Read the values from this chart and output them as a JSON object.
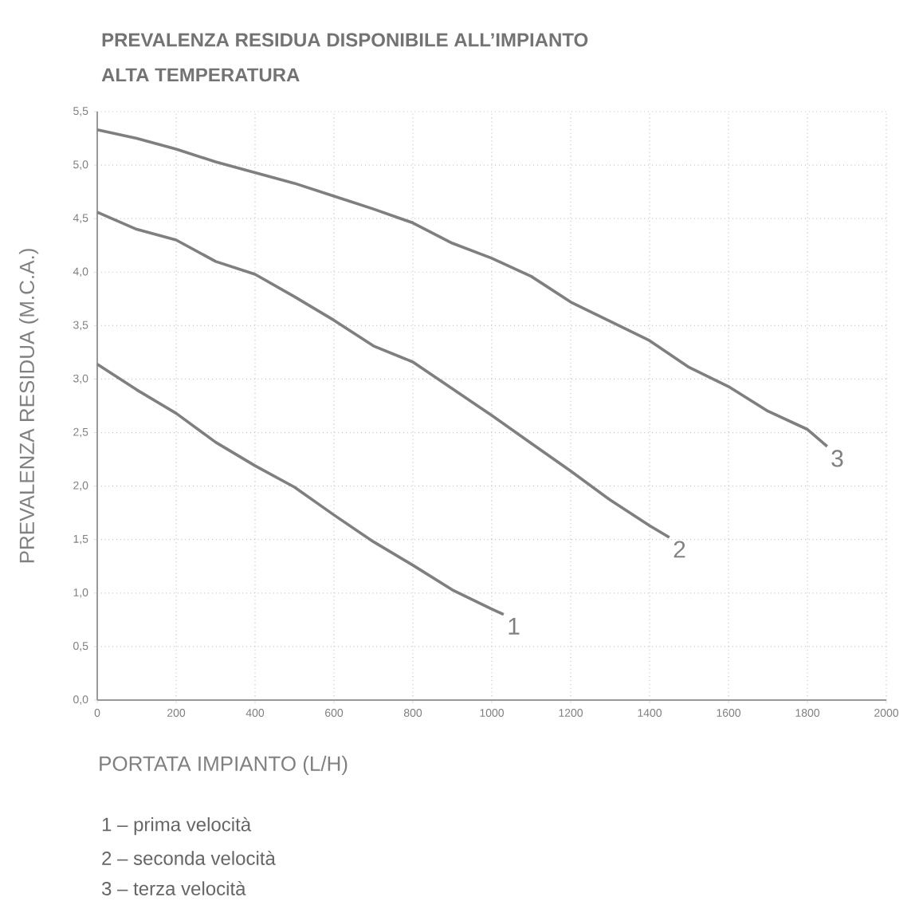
{
  "chart_data": {
    "type": "line",
    "title": "PREVALENZA RESIDUA DISPONIBILE ALL’IMPIANTO",
    "subtitle": "ALTA TEMPERATURA",
    "xlabel": "PORTATA IMPIANTO (L/H)",
    "ylabel": "PREVALENZA RESIDUA (M.C.A.)",
    "xlim": [
      0,
      2000
    ],
    "ylim": [
      0,
      5.5
    ],
    "xticks": [
      0,
      200,
      400,
      600,
      800,
      1000,
      1200,
      1400,
      1600,
      1800,
      2000
    ],
    "yticks": [
      {
        "value": 0,
        "label": "0,0"
      },
      {
        "value": 0.5,
        "label": "0,5"
      },
      {
        "value": 1,
        "label": "1,0"
      },
      {
        "value": 1.5,
        "label": "1,5"
      },
      {
        "value": 2,
        "label": "2,0"
      },
      {
        "value": 2.5,
        "label": "2,5"
      },
      {
        "value": 3,
        "label": "3,0"
      },
      {
        "value": 3.5,
        "label": "3,5"
      },
      {
        "value": 4,
        "label": "4,0"
      },
      {
        "value": 4.5,
        "label": "4,5"
      },
      {
        "value": 5,
        "label": "5,0"
      },
      {
        "value": 5.5,
        "label": "5,5"
      }
    ],
    "grid": true,
    "line_style": "solid",
    "marker": "none",
    "series": [
      {
        "name": "1",
        "color": "#7f7f7f",
        "x": [
          0,
          100,
          200,
          300,
          400,
          500,
          600,
          700,
          800,
          900,
          1000,
          1030
        ],
        "values": [
          3.14,
          2.9,
          2.68,
          2.41,
          2.19,
          1.99,
          1.73,
          1.48,
          1.26,
          1.03,
          0.85,
          0.8
        ]
      },
      {
        "name": "2",
        "color": "#7f7f7f",
        "x": [
          0,
          100,
          200,
          300,
          400,
          500,
          600,
          700,
          800,
          900,
          1000,
          1100,
          1200,
          1300,
          1400,
          1450
        ],
        "values": [
          4.56,
          4.4,
          4.3,
          4.1,
          3.98,
          3.77,
          3.55,
          3.31,
          3.16,
          2.91,
          2.66,
          2.4,
          2.14,
          1.87,
          1.63,
          1.52
        ]
      },
      {
        "name": "3",
        "color": "#7f7f7f",
        "x": [
          0,
          100,
          200,
          300,
          400,
          500,
          600,
          700,
          800,
          900,
          1000,
          1100,
          1200,
          1300,
          1400,
          1500,
          1600,
          1700,
          1800,
          1850
        ],
        "values": [
          5.33,
          5.25,
          5.15,
          5.03,
          4.93,
          4.83,
          4.71,
          4.59,
          4.46,
          4.27,
          4.13,
          3.96,
          3.72,
          3.54,
          3.36,
          3.11,
          2.93,
          2.7,
          2.53,
          2.37
        ]
      }
    ],
    "annotations": [
      "1 – prima velocità",
      "2 – seconda velocità",
      "3 – terza velocità"
    ]
  }
}
